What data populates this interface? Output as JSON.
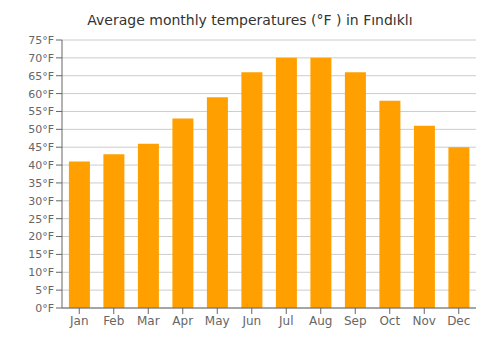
{
  "chart_data": {
    "type": "bar",
    "title": "Average monthly temperatures (°F ) in Fındıklı",
    "categories": [
      "Jan",
      "Feb",
      "Mar",
      "Apr",
      "May",
      "Jun",
      "Jul",
      "Aug",
      "Sep",
      "Oct",
      "Nov",
      "Dec"
    ],
    "values": [
      41,
      43,
      46,
      53,
      59,
      66,
      70,
      70,
      66,
      58,
      51,
      45
    ],
    "color": "#FFA000",
    "ylim": [
      0,
      75
    ],
    "yticks": [
      {
        "value": 0,
        "label": "0°F"
      },
      {
        "value": 5,
        "label": "5°F"
      },
      {
        "value": 10,
        "label": "10°F"
      },
      {
        "value": 15,
        "label": "15°F"
      },
      {
        "value": 20,
        "label": "20°F"
      },
      {
        "value": 25,
        "label": "25°F"
      },
      {
        "value": 30,
        "label": "30°F"
      },
      {
        "value": 35,
        "label": "35°F"
      },
      {
        "value": 40,
        "label": "40°F"
      },
      {
        "value": 45,
        "label": "45°F"
      },
      {
        "value": 50,
        "label": "50°F"
      },
      {
        "value": 55,
        "label": "55°F"
      },
      {
        "value": 60,
        "label": "60°F"
      },
      {
        "value": 65,
        "label": "65°F"
      },
      {
        "value": 70,
        "label": "70°F"
      },
      {
        "value": 75,
        "label": "75°F"
      }
    ],
    "grid": true
  }
}
